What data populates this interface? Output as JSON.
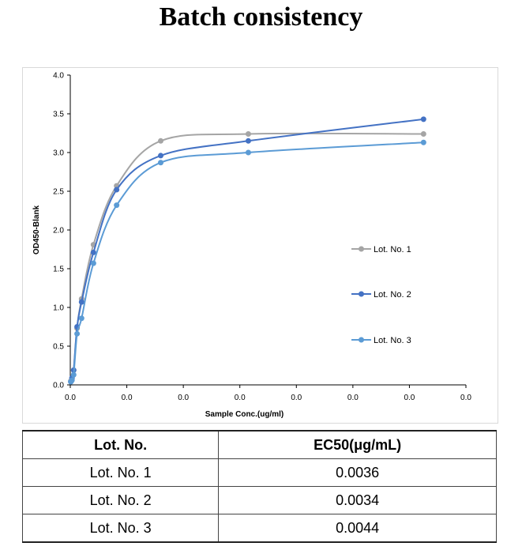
{
  "title": "Batch consistency",
  "chart_data": {
    "type": "line",
    "title": "",
    "xlabel": "Sample Conc.(ug/ml)",
    "ylabel": "OD450-Blank",
    "ylim": [
      0,
      4.0
    ],
    "y_ticks": [
      "0.0",
      "0.5",
      "1.0",
      "1.5",
      "2.0",
      "2.5",
      "3.0",
      "3.5",
      "4.0"
    ],
    "xlim": [
      0,
      0.07
    ],
    "x_ticks": [
      "0.0",
      "0.0",
      "0.0",
      "0.0",
      "0.0",
      "0.0",
      "0.0",
      "0.0"
    ],
    "grid": false,
    "legend_position": "right",
    "series": [
      {
        "name": "Lot. No. 1",
        "color": "#a5a5a5",
        "x": [
          0.0001,
          0.0003,
          0.0006,
          0.0012,
          0.002,
          0.0041,
          0.0082,
          0.016,
          0.0315,
          0.0625
        ],
        "y": [
          0.05,
          0.08,
          0.19,
          0.73,
          1.11,
          1.81,
          2.57,
          3.15,
          3.24,
          3.24
        ]
      },
      {
        "name": "Lot. No. 2",
        "color": "#4472c4",
        "x": [
          0.0001,
          0.0003,
          0.0006,
          0.0012,
          0.002,
          0.0041,
          0.0082,
          0.016,
          0.0315,
          0.0625
        ],
        "y": [
          0.04,
          0.09,
          0.19,
          0.75,
          1.07,
          1.71,
          2.52,
          2.96,
          3.15,
          3.43
        ]
      },
      {
        "name": "Lot. No. 3",
        "color": "#5b9bd5",
        "x": [
          0.0001,
          0.0003,
          0.0006,
          0.0012,
          0.002,
          0.0041,
          0.0082,
          0.016,
          0.0315,
          0.0625
        ],
        "y": [
          0.04,
          0.06,
          0.13,
          0.66,
          0.86,
          1.57,
          2.32,
          2.87,
          3.0,
          3.13
        ]
      }
    ]
  },
  "table": {
    "headers": [
      "Lot. No.",
      "EC50(μg/mL)"
    ],
    "rows": [
      [
        "Lot. No. 1",
        "0.0036"
      ],
      [
        "Lot. No. 2",
        "0.0034"
      ],
      [
        "Lot. No. 3",
        "0.0044"
      ]
    ]
  }
}
